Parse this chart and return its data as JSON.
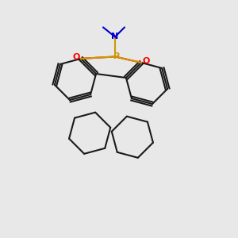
{
  "background_color": "#e8e8e8",
  "atom_colors": {
    "P": "#cc9900",
    "O": "#ff0000",
    "N": "#0000cc",
    "C": "#1a1a1a"
  },
  "figsize": [
    3.0,
    3.0
  ],
  "dpi": 100
}
